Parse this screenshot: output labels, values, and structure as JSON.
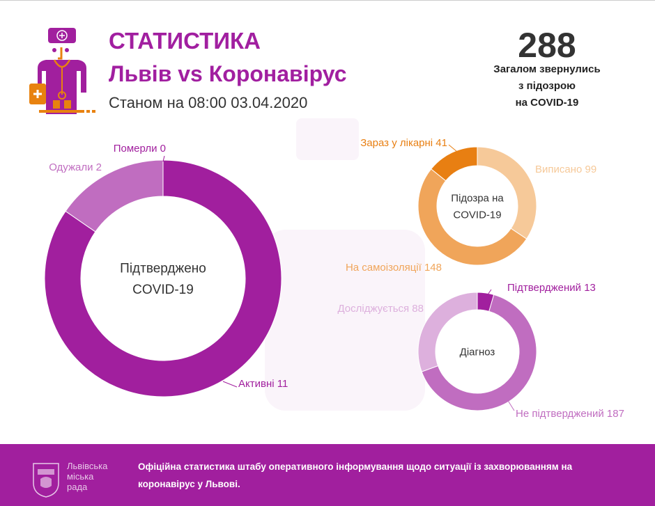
{
  "header": {
    "title": "СТАТИСТИКА",
    "subtitle": "Львів vs Коронавірус",
    "as_of": "Станом на 08:00 03.04.2020"
  },
  "total": {
    "value": "288",
    "label_lines": [
      "Загалом звернулись",
      "з підозрою",
      "на COVID-19"
    ]
  },
  "footer": {
    "text": "Офіційна статистика штабу оперативного інформування щодо ситуації із захворюванням на коронавірус у Львові.",
    "logo_lines": [
      "Львівська",
      "міська",
      "рада"
    ]
  },
  "chart_data": [
    {
      "type": "pie",
      "variant": "donut",
      "center_lines": [
        "Підтверджено",
        "COVID-19"
      ],
      "slices": [
        {
          "label": "Активні 11",
          "value": 11,
          "color": "#a11f9e"
        },
        {
          "label": "Померли 0",
          "value": 0,
          "color": "#a11f9e"
        },
        {
          "label": "Одужали 2",
          "value": 2,
          "color": "#c06dc0"
        }
      ]
    },
    {
      "type": "pie",
      "variant": "donut",
      "center_lines": [
        "Підозра на",
        "COVID-19"
      ],
      "slices": [
        {
          "label": "Виписано 99",
          "value": 99,
          "color": "#f6c999"
        },
        {
          "label": "На самоізоляції 148",
          "value": 148,
          "color": "#f0a55a"
        },
        {
          "label": "Зараз у лікарні 41",
          "value": 41,
          "color": "#e87f12"
        }
      ]
    },
    {
      "type": "pie",
      "variant": "donut",
      "center_lines": [
        "Діагноз"
      ],
      "slices": [
        {
          "label": "Підтверджений 13",
          "value": 13,
          "color": "#a11f9e"
        },
        {
          "label": "Не підтверджений 187",
          "value": 187,
          "color": "#c06dc0"
        },
        {
          "label": "Досліджується 88",
          "value": 88,
          "color": "#ddb0dd"
        }
      ]
    }
  ]
}
